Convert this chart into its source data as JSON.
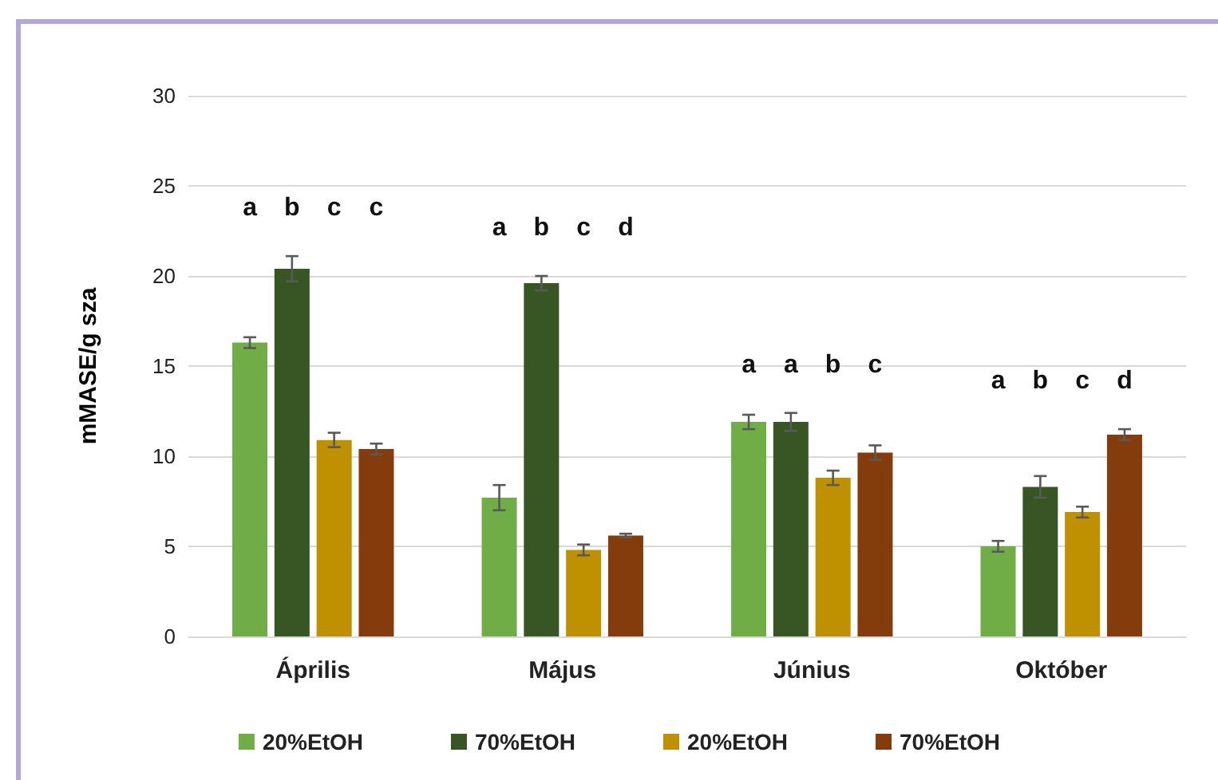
{
  "chart_data": {
    "type": "bar",
    "ylabel": "mMASE/g sza",
    "categories": [
      "Április",
      "Május",
      "Június",
      "Október"
    ],
    "series": [
      {
        "name": "20%EtOH",
        "color": "#70ad47",
        "values": [
          16.3,
          7.7,
          11.9,
          5.0
        ],
        "errors": [
          0.3,
          0.7,
          0.4,
          0.3
        ]
      },
      {
        "name": "70%EtOH",
        "color": "#375623",
        "values": [
          20.4,
          19.6,
          11.9,
          8.3
        ],
        "errors": [
          0.7,
          0.4,
          0.5,
          0.6
        ]
      },
      {
        "name": "20%EtOH",
        "color": "#bf9000",
        "values": [
          10.9,
          4.8,
          8.8,
          6.9
        ],
        "errors": [
          0.4,
          0.3,
          0.4,
          0.3
        ]
      },
      {
        "name": "70%EtOH",
        "color": "#843c0c",
        "values": [
          10.4,
          5.6,
          10.2,
          11.2
        ],
        "errors": [
          0.3,
          0.1,
          0.4,
          0.3
        ]
      }
    ],
    "ylim": [
      0,
      30
    ],
    "yticks": [
      0,
      5,
      10,
      15,
      20,
      25,
      30
    ],
    "grid": "y",
    "legend": "bottom",
    "annotations": [
      "a",
      "b",
      "c",
      "c",
      "a",
      "b",
      "c",
      "d",
      "a",
      "a",
      "b",
      "c",
      "a",
      "b",
      "c",
      "d"
    ]
  }
}
